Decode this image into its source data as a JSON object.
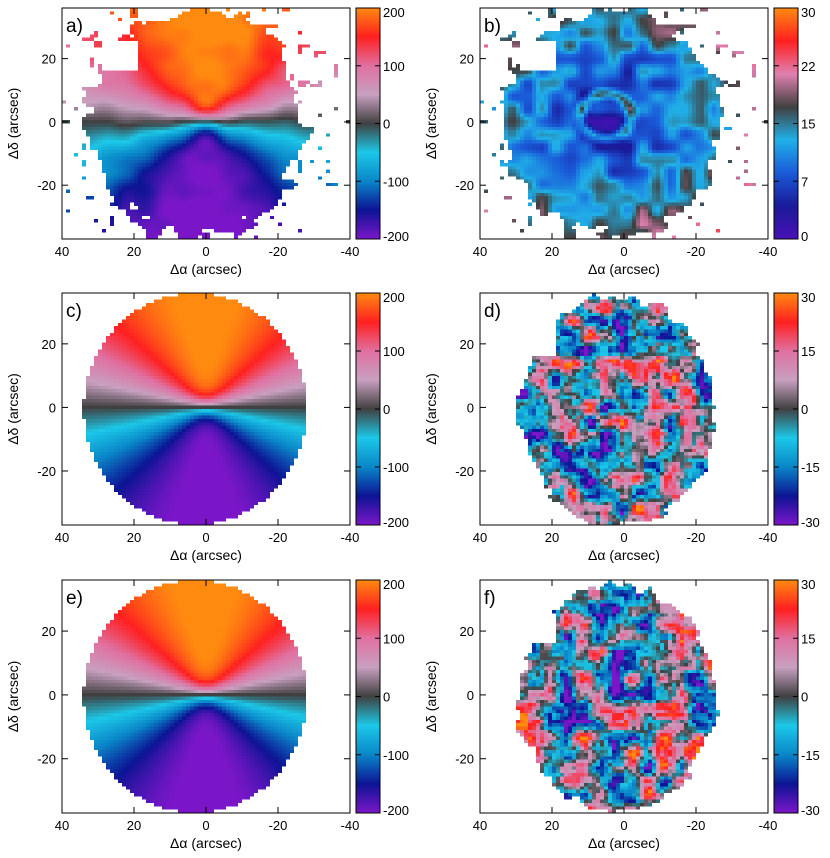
{
  "chart_data": [
    {
      "panel_label": "a)",
      "type": "heatmap",
      "map": "velocity",
      "x": {
        "label": "Δα (arcsec)",
        "lim": [
          40,
          -40
        ],
        "ticks": [
          "40",
          "20",
          "0",
          "-20",
          "-40"
        ]
      },
      "y": {
        "label": "Δδ (arcsec)",
        "lim": [
          -37,
          36
        ],
        "ticks": [
          "20",
          "0",
          "-20"
        ]
      },
      "colorbar": {
        "type": "diverging",
        "range": [
          -200,
          200
        ],
        "ticks": [
          "200",
          "100",
          "0",
          "-100",
          "-200"
        ]
      }
    },
    {
      "panel_label": "b)",
      "type": "heatmap",
      "map": "dispersion",
      "x": {
        "label": "Δα (arcsec)",
        "lim": [
          40,
          -40
        ],
        "ticks": [
          "40",
          "20",
          "0",
          "-20",
          "-40"
        ]
      },
      "y": {
        "label": "Δδ (arcsec)",
        "lim": [
          -37,
          36
        ],
        "ticks": [
          "20",
          "0",
          "-20"
        ]
      },
      "colorbar": {
        "type": "sequential",
        "range": [
          0,
          30
        ],
        "ticks": [
          "30",
          "22",
          "15",
          "7",
          "0"
        ]
      }
    },
    {
      "panel_label": "c)",
      "type": "heatmap",
      "map": "velocity model",
      "x": {
        "label": "Δα (arcsec)",
        "lim": [
          40,
          -40
        ],
        "ticks": [
          "40",
          "20",
          "0",
          "-20",
          "-40"
        ]
      },
      "y": {
        "label": "Δδ (arcsec)",
        "lim": [
          -37,
          36
        ],
        "ticks": [
          "20",
          "0",
          "-20"
        ]
      },
      "colorbar": {
        "type": "diverging",
        "range": [
          -200,
          200
        ],
        "ticks": [
          "200",
          "100",
          "0",
          "-100",
          "-200"
        ]
      }
    },
    {
      "panel_label": "d)",
      "type": "heatmap",
      "map": "velocity residual",
      "x": {
        "label": "Δα (arcsec)",
        "lim": [
          40,
          -40
        ],
        "ticks": [
          "40",
          "20",
          "0",
          "-20",
          "-40"
        ]
      },
      "y": {
        "label": "Δδ (arcsec)",
        "lim": [
          -37,
          36
        ],
        "ticks": [
          "20",
          "0",
          "-20"
        ]
      },
      "colorbar": {
        "type": "diverging",
        "range": [
          -30,
          30
        ],
        "ticks": [
          "30",
          "15",
          "0",
          "-15",
          "-30"
        ]
      }
    },
    {
      "panel_label": "e)",
      "type": "heatmap",
      "map": "velocity model",
      "x": {
        "label": "Δα (arcsec)",
        "lim": [
          40,
          -40
        ],
        "ticks": [
          "40",
          "20",
          "0",
          "-20",
          "-40"
        ]
      },
      "y": {
        "label": "Δδ (arcsec)",
        "lim": [
          -37,
          36
        ],
        "ticks": [
          "20",
          "0",
          "-20"
        ]
      },
      "colorbar": {
        "type": "diverging",
        "range": [
          -200,
          200
        ],
        "ticks": [
          "200",
          "100",
          "0",
          "-100",
          "-200"
        ]
      }
    },
    {
      "panel_label": "f)",
      "type": "heatmap",
      "map": "velocity residual",
      "x": {
        "label": "Δα (arcsec)",
        "lim": [
          40,
          -40
        ],
        "ticks": [
          "40",
          "20",
          "0",
          "-20",
          "-40"
        ]
      },
      "y": {
        "label": "Δδ (arcsec)",
        "lim": [
          -37,
          36
        ],
        "ticks": [
          "20",
          "0",
          "-20"
        ]
      },
      "colorbar": {
        "type": "diverging",
        "range": [
          -30,
          30
        ],
        "ticks": [
          "30",
          "15",
          "0",
          "-15",
          "-30"
        ]
      }
    }
  ],
  "colors": {
    "diverging": [
      "#7b16c8",
      "#0c1494",
      "#0a86c8",
      "#1cc8e8",
      "#404040",
      "#c8a0c0",
      "#e070a0",
      "#ff2020",
      "#ff8a10"
    ],
    "sequential": [
      "#4a10b8",
      "#1a1a98",
      "#1a5ad8",
      "#20b0e8",
      "#404040",
      "#e080b0",
      "#ff2020",
      "#ff8a10"
    ],
    "mask": "#ffffff",
    "axis": "#000000"
  }
}
